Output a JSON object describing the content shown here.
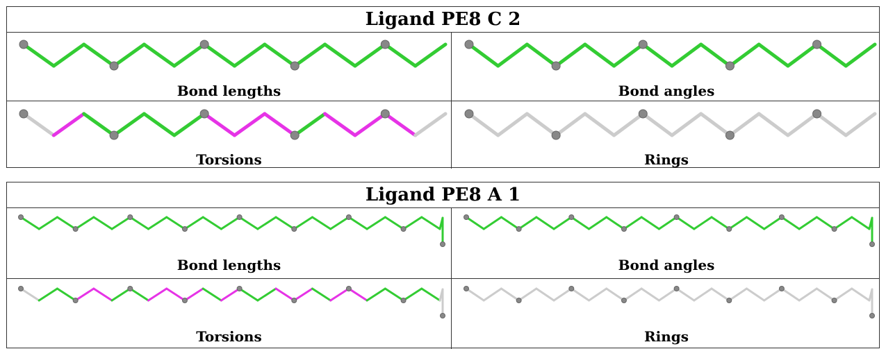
{
  "tables": [
    {
      "title": "Ligand PE8 C 2",
      "panels": [
        {
          "caption": "Bond lengths",
          "colors": [
            "g",
            "g",
            "g",
            "g",
            "g",
            "g",
            "g",
            "g",
            "g",
            "g",
            "g",
            "g",
            "g",
            "g"
          ]
        },
        {
          "caption": "Bond angles",
          "colors": [
            "g",
            "g",
            "g",
            "g",
            "g",
            "g",
            "g",
            "g",
            "g",
            "g",
            "g",
            "g",
            "g",
            "g"
          ]
        },
        {
          "caption": "Torsions",
          "colors": [
            "n",
            "m",
            "g",
            "g",
            "g",
            "g",
            "m",
            "m",
            "m",
            "g",
            "m",
            "m",
            "m",
            "n"
          ]
        },
        {
          "caption": "Rings",
          "colors": [
            "n",
            "n",
            "n",
            "n",
            "n",
            "n",
            "n",
            "n",
            "n",
            "n",
            "n",
            "n",
            "n",
            "n"
          ]
        }
      ]
    },
    {
      "title": "Ligand PE8 A 1",
      "panels": [
        {
          "caption": "Bond lengths",
          "colors": [
            "g",
            "g",
            "g",
            "g",
            "g",
            "g",
            "g",
            "g",
            "g",
            "g",
            "g",
            "g",
            "g",
            "g",
            "g",
            "g",
            "g",
            "g",
            "g",
            "g",
            "g",
            "g",
            "g",
            "g"
          ]
        },
        {
          "caption": "Bond angles",
          "colors": [
            "g",
            "g",
            "g",
            "g",
            "g",
            "g",
            "g",
            "g",
            "g",
            "g",
            "g",
            "g",
            "g",
            "g",
            "g",
            "g",
            "g",
            "g",
            "g",
            "g",
            "g",
            "g",
            "g",
            "g"
          ]
        },
        {
          "caption": "Torsions",
          "colors": [
            "n",
            "g",
            "g",
            "m",
            "m",
            "g",
            "g",
            "m",
            "m",
            "m",
            "g",
            "m",
            "g",
            "g",
            "m",
            "m",
            "g",
            "m",
            "m",
            "g",
            "g",
            "g",
            "g",
            "n"
          ]
        },
        {
          "caption": "Rings",
          "colors": [
            "n",
            "n",
            "n",
            "n",
            "n",
            "n",
            "n",
            "n",
            "n",
            "n",
            "n",
            "n",
            "n",
            "n",
            "n",
            "n",
            "n",
            "n",
            "n",
            "n",
            "n",
            "n",
            "n",
            "n"
          ]
        }
      ]
    }
  ],
  "palette": {
    "g": "#33cc33",
    "m": "#e633e6",
    "n": "#cccccc",
    "atom": "#888888"
  }
}
